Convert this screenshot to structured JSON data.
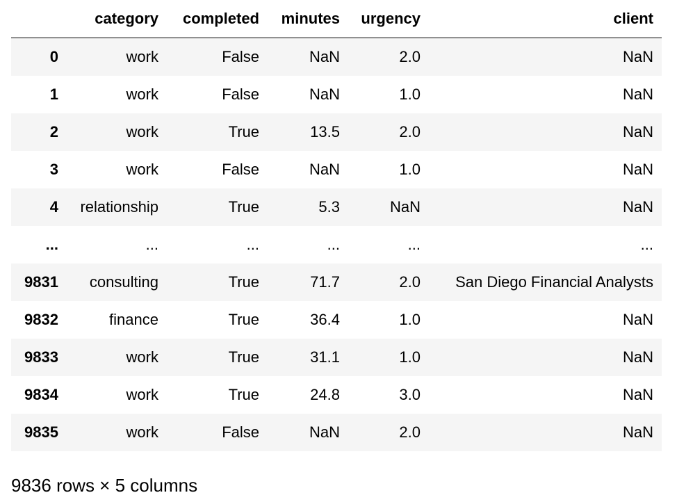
{
  "table": {
    "columns": [
      "",
      "category",
      "completed",
      "minutes",
      "urgency",
      "client"
    ],
    "rows": [
      [
        "0",
        "work",
        "False",
        "NaN",
        "2.0",
        "NaN"
      ],
      [
        "1",
        "work",
        "False",
        "NaN",
        "1.0",
        "NaN"
      ],
      [
        "2",
        "work",
        "True",
        "13.5",
        "2.0",
        "NaN"
      ],
      [
        "3",
        "work",
        "False",
        "NaN",
        "1.0",
        "NaN"
      ],
      [
        "4",
        "relationship",
        "True",
        "5.3",
        "NaN",
        "NaN"
      ],
      [
        "...",
        "...",
        "...",
        "...",
        "...",
        "..."
      ],
      [
        "9831",
        "consulting",
        "True",
        "71.7",
        "2.0",
        "San Diego Financial Analysts"
      ],
      [
        "9832",
        "finance",
        "True",
        "36.4",
        "1.0",
        "NaN"
      ],
      [
        "9833",
        "work",
        "True",
        "31.1",
        "1.0",
        "NaN"
      ],
      [
        "9834",
        "work",
        "True",
        "24.8",
        "3.0",
        "NaN"
      ],
      [
        "9835",
        "work",
        "False",
        "NaN",
        "2.0",
        "NaN"
      ]
    ]
  },
  "footer": {
    "shape_text": "9836 rows × 5 columns"
  }
}
